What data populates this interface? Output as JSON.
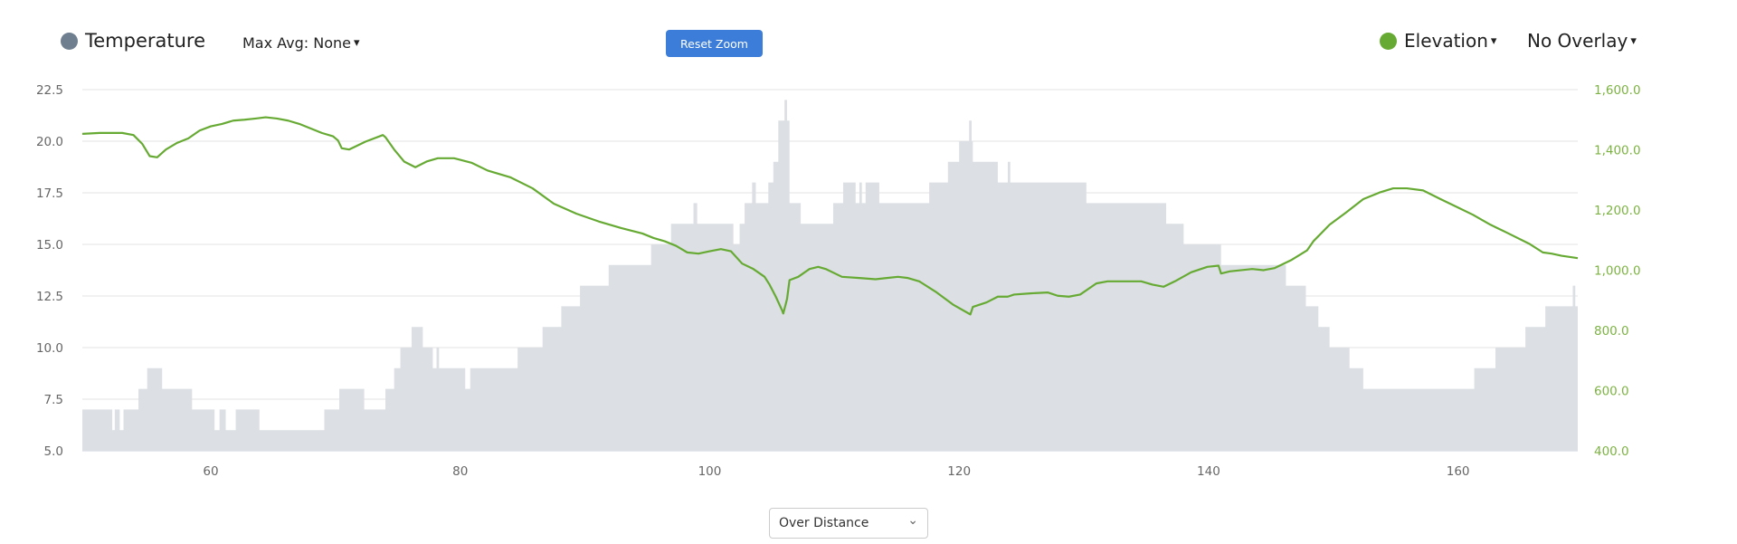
{
  "header": {
    "temperature_label": "Temperature",
    "max_avg_label": "Max Avg: None",
    "reset_zoom_label": "Reset Zoom",
    "elevation_label": "Elevation",
    "overlay_label": "No Overlay",
    "caret_icon": "▾"
  },
  "footer": {
    "mode_select_value": "Over Distance",
    "chevron_icon": "⌄"
  },
  "colors": {
    "temperature": "#6f7f8f",
    "temperature_fill": "#dcdfe3",
    "elevation": "#66aa33",
    "button": "#3b7dd8"
  },
  "chart_data": {
    "type": "line",
    "xlabel": "",
    "ylabel": "",
    "xlim": [
      49.7,
      169.6
    ],
    "x_ticks": [
      "60",
      "80",
      "100",
      "120",
      "140",
      "160"
    ],
    "y_left": {
      "lim": [
        5.0,
        22.5
      ],
      "ticks": [
        "5.0",
        "7.5",
        "10.0",
        "12.5",
        "15.0",
        "17.5",
        "20.0",
        "22.5"
      ]
    },
    "y_right": {
      "lim": [
        400,
        1600
      ],
      "ticks": [
        "400.0",
        "600.0",
        "800.0",
        "1,000.0",
        "1,200.0",
        "1,400.0",
        "1,600.0"
      ]
    },
    "grid": true,
    "series": [
      {
        "name": "Temperature",
        "axis": "left",
        "style": "step-area",
        "points": [
          [
            49.7,
            7
          ],
          [
            52.1,
            6
          ],
          [
            52.3,
            7
          ],
          [
            52.7,
            6
          ],
          [
            53.0,
            7
          ],
          [
            54.2,
            8
          ],
          [
            54.9,
            9
          ],
          [
            56.1,
            8
          ],
          [
            58.5,
            7
          ],
          [
            60.3,
            6
          ],
          [
            60.7,
            7
          ],
          [
            61.2,
            6
          ],
          [
            62.0,
            7
          ],
          [
            63.9,
            6
          ],
          [
            69.1,
            7
          ],
          [
            70.3,
            8
          ],
          [
            72.3,
            7
          ],
          [
            74.0,
            8
          ],
          [
            74.7,
            9
          ],
          [
            75.2,
            10
          ],
          [
            76.1,
            11
          ],
          [
            77.0,
            10
          ],
          [
            77.8,
            9
          ],
          [
            78.1,
            10
          ],
          [
            78.3,
            9
          ],
          [
            80.4,
            8
          ],
          [
            80.8,
            9
          ],
          [
            84.6,
            10
          ],
          [
            86.6,
            11
          ],
          [
            88.1,
            12
          ],
          [
            89.6,
            13
          ],
          [
            91.9,
            14
          ],
          [
            95.3,
            15
          ],
          [
            96.9,
            16
          ],
          [
            98.7,
            17
          ],
          [
            99.0,
            16
          ],
          [
            101.9,
            15
          ],
          [
            102.4,
            16
          ],
          [
            102.8,
            17
          ],
          [
            103.4,
            18
          ],
          [
            103.7,
            17
          ],
          [
            104.7,
            18
          ],
          [
            105.1,
            19
          ],
          [
            105.5,
            21
          ],
          [
            106.0,
            22
          ],
          [
            106.2,
            21
          ],
          [
            106.4,
            17
          ],
          [
            107.3,
            16
          ],
          [
            109.9,
            17
          ],
          [
            110.7,
            18
          ],
          [
            111.7,
            17
          ],
          [
            112.0,
            18
          ],
          [
            112.2,
            17
          ],
          [
            112.5,
            18
          ],
          [
            113.6,
            17
          ],
          [
            117.6,
            18
          ],
          [
            119.1,
            19
          ],
          [
            120.0,
            20
          ],
          [
            120.8,
            21
          ],
          [
            121.0,
            20
          ],
          [
            121.1,
            19
          ],
          [
            123.1,
            18
          ],
          [
            123.9,
            19
          ],
          [
            124.1,
            18
          ],
          [
            130.2,
            17
          ],
          [
            136.6,
            16
          ],
          [
            138.0,
            15
          ],
          [
            141.0,
            14
          ],
          [
            146.2,
            13
          ],
          [
            147.8,
            12
          ],
          [
            148.8,
            11
          ],
          [
            149.7,
            10
          ],
          [
            151.3,
            9
          ],
          [
            152.4,
            8
          ],
          [
            161.3,
            9
          ],
          [
            163.0,
            10
          ],
          [
            165.4,
            11
          ],
          [
            167.0,
            12
          ],
          [
            169.2,
            13
          ],
          [
            169.4,
            12
          ],
          [
            169.6,
            12
          ]
        ]
      },
      {
        "name": "Elevation",
        "axis": "right",
        "style": "line",
        "points": [
          [
            49.7,
            1453
          ],
          [
            51.1,
            1456
          ],
          [
            52.9,
            1456
          ],
          [
            53.8,
            1449
          ],
          [
            54.5,
            1420
          ],
          [
            55.1,
            1379
          ],
          [
            55.7,
            1375
          ],
          [
            56.4,
            1401
          ],
          [
            57.3,
            1423
          ],
          [
            58.2,
            1438
          ],
          [
            59.1,
            1464
          ],
          [
            60.0,
            1478
          ],
          [
            60.9,
            1486
          ],
          [
            61.8,
            1497
          ],
          [
            62.7,
            1500
          ],
          [
            63.6,
            1504
          ],
          [
            64.4,
            1508
          ],
          [
            65.3,
            1504
          ],
          [
            66.2,
            1497
          ],
          [
            67.1,
            1486
          ],
          [
            68.0,
            1471
          ],
          [
            68.9,
            1456
          ],
          [
            69.8,
            1445
          ],
          [
            70.2,
            1431
          ],
          [
            70.5,
            1405
          ],
          [
            71.1,
            1401
          ],
          [
            71.5,
            1409
          ],
          [
            72.4,
            1427
          ],
          [
            73.8,
            1449
          ],
          [
            74.0,
            1442
          ],
          [
            74.7,
            1401
          ],
          [
            75.5,
            1361
          ],
          [
            76.4,
            1342
          ],
          [
            77.3,
            1361
          ],
          [
            78.2,
            1372
          ],
          [
            79.5,
            1372
          ],
          [
            80.9,
            1357
          ],
          [
            82.2,
            1331
          ],
          [
            84.0,
            1309
          ],
          [
            85.8,
            1272
          ],
          [
            87.5,
            1221
          ],
          [
            89.3,
            1188
          ],
          [
            91.1,
            1162
          ],
          [
            92.9,
            1140
          ],
          [
            94.6,
            1122
          ],
          [
            95.5,
            1107
          ],
          [
            96.4,
            1096
          ],
          [
            97.3,
            1081
          ],
          [
            98.2,
            1059
          ],
          [
            99.1,
            1055
          ],
          [
            100.0,
            1063
          ],
          [
            100.9,
            1070
          ],
          [
            101.7,
            1063
          ],
          [
            102.6,
            1022
          ],
          [
            103.5,
            1004
          ],
          [
            104.4,
            978
          ],
          [
            104.8,
            952
          ],
          [
            105.3,
            912
          ],
          [
            105.8,
            867
          ],
          [
            105.9,
            856
          ],
          [
            106.2,
            904
          ],
          [
            106.4,
            967
          ],
          [
            107.1,
            978
          ],
          [
            108.0,
            1004
          ],
          [
            108.7,
            1011
          ],
          [
            109.3,
            1004
          ],
          [
            110.6,
            978
          ],
          [
            112.0,
            974
          ],
          [
            113.3,
            970
          ],
          [
            114.2,
            974
          ],
          [
            115.1,
            978
          ],
          [
            115.9,
            974
          ],
          [
            116.8,
            963
          ],
          [
            118.2,
            926
          ],
          [
            119.5,
            886
          ],
          [
            120.9,
            853
          ],
          [
            121.1,
            878
          ],
          [
            122.2,
            893
          ],
          [
            123.1,
            912
          ],
          [
            123.9,
            912
          ],
          [
            124.4,
            919
          ],
          [
            125.7,
            923
          ],
          [
            127.1,
            926
          ],
          [
            127.9,
            915
          ],
          [
            128.8,
            912
          ],
          [
            129.7,
            919
          ],
          [
            131.0,
            956
          ],
          [
            131.9,
            963
          ],
          [
            132.8,
            963
          ],
          [
            134.6,
            963
          ],
          [
            135.5,
            952
          ],
          [
            136.4,
            945
          ],
          [
            137.3,
            963
          ],
          [
            138.6,
            993
          ],
          [
            139.9,
            1011
          ],
          [
            140.8,
            1015
          ],
          [
            141.0,
            989
          ],
          [
            141.7,
            996
          ],
          [
            143.5,
            1004
          ],
          [
            144.4,
            1000
          ],
          [
            145.3,
            1007
          ],
          [
            146.6,
            1033
          ],
          [
            147.9,
            1066
          ],
          [
            148.4,
            1096
          ],
          [
            149.7,
            1151
          ],
          [
            151.0,
            1191
          ],
          [
            152.4,
            1236
          ],
          [
            153.7,
            1258
          ],
          [
            154.8,
            1272
          ],
          [
            155.9,
            1272
          ],
          [
            157.2,
            1265
          ],
          [
            158.6,
            1236
          ],
          [
            159.9,
            1210
          ],
          [
            161.2,
            1184
          ],
          [
            162.6,
            1151
          ],
          [
            163.9,
            1125
          ],
          [
            165.7,
            1088
          ],
          [
            166.8,
            1059
          ],
          [
            167.5,
            1055
          ],
          [
            168.3,
            1048
          ],
          [
            169.6,
            1040
          ]
        ]
      }
    ]
  }
}
